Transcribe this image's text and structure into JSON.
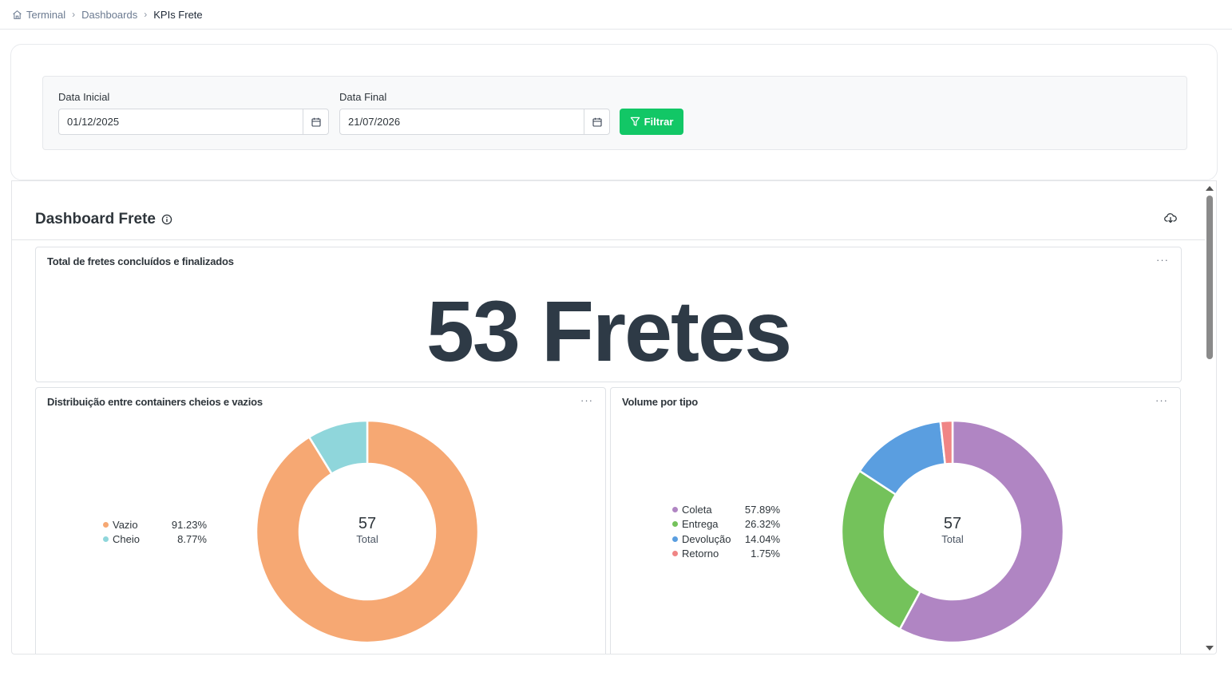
{
  "breadcrumb": {
    "items": [
      "Terminal",
      "Dashboards"
    ],
    "current": "KPIs Frete"
  },
  "filters": {
    "start_label": "Data Inicial",
    "start_value": "01/12/2025",
    "end_label": "Data Final",
    "end_value": "21/07/2026",
    "button_label": "Filtrar"
  },
  "dashboard": {
    "title": "Dashboard Frete",
    "kpi": {
      "title": "Total de fretes concluídos e finalizados",
      "value": "53 Fretes"
    },
    "menu": "···"
  },
  "chart_data": [
    {
      "type": "pie",
      "title": "Distribuição entre containers cheios e vazios",
      "center_value": "57",
      "center_label": "Total",
      "categories": [
        "Vazio",
        "Cheio"
      ],
      "values": [
        91.23,
        8.77
      ],
      "labels": [
        "91.23%",
        "8.77%"
      ],
      "colors": [
        "#f6a873",
        "#8fd6db"
      ]
    },
    {
      "type": "pie",
      "title": "Volume por tipo",
      "center_value": "57",
      "center_label": "Total",
      "categories": [
        "Coleta",
        "Entrega",
        "Devolução",
        "Retorno"
      ],
      "values": [
        57.89,
        26.32,
        14.04,
        1.75
      ],
      "labels": [
        "57.89%",
        "26.32%",
        "14.04%",
        "1.75%"
      ],
      "colors": [
        "#b085c3",
        "#74c25b",
        "#5a9ee0",
        "#f08585"
      ]
    }
  ],
  "colors": {
    "accent": "#12c766",
    "text": "#2e353b"
  }
}
